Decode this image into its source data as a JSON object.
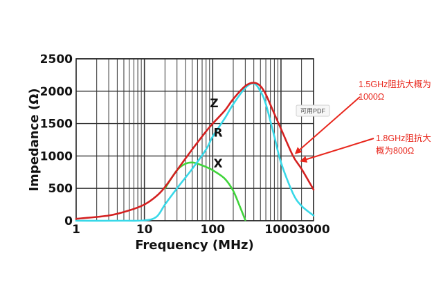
{
  "chart_data": {
    "type": "line",
    "xlabel": "Frequency (MHz)",
    "ylabel": "Impedance (Ω)",
    "xscale": "log",
    "xlim": [
      1,
      3000
    ],
    "ylim": [
      0,
      2500
    ],
    "x_ticks": [
      1,
      10,
      100,
      1000,
      3000
    ],
    "x_tick_labels": [
      "1",
      "10",
      "100",
      "1000",
      "3000"
    ],
    "y_ticks": [
      0,
      500,
      1000,
      1500,
      2000,
      2500
    ],
    "y_tick_labels": [
      "0",
      "500",
      "1000",
      "1500",
      "2000",
      "2500"
    ],
    "grid": true,
    "series": [
      {
        "name": "Z",
        "color": "#d42020",
        "x": [
          1,
          3,
          6,
          10,
          15,
          20,
          30,
          50,
          80,
          100,
          150,
          200,
          300,
          400,
          500,
          600,
          800,
          1000,
          1500,
          2000,
          3000
        ],
        "y": [
          30,
          80,
          160,
          250,
          380,
          520,
          780,
          1100,
          1380,
          1500,
          1700,
          1880,
          2080,
          2130,
          2080,
          1950,
          1650,
          1420,
          1000,
          800,
          480
        ]
      },
      {
        "name": "R",
        "color": "#38d8e8",
        "x": [
          1,
          5,
          10,
          15,
          20,
          30,
          50,
          80,
          100,
          150,
          200,
          300,
          400,
          500,
          600,
          800,
          1000,
          1500,
          2000,
          3000
        ],
        "y": [
          0,
          0,
          5,
          60,
          250,
          500,
          800,
          1100,
          1300,
          1580,
          1800,
          2050,
          2120,
          2000,
          1800,
          1300,
          900,
          420,
          230,
          80
        ]
      },
      {
        "name": "X",
        "color": "#3fd43a",
        "x": [
          20,
          30,
          40,
          50,
          60,
          80,
          100,
          150,
          200,
          250,
          300
        ],
        "y": [
          500,
          780,
          880,
          900,
          880,
          830,
          780,
          650,
          460,
          220,
          10
        ]
      }
    ],
    "series_label_positions": [
      {
        "name": "Z",
        "x": 105,
        "y": 1750
      },
      {
        "name": "R",
        "x": 120,
        "y": 1300
      },
      {
        "name": "X",
        "x": 120,
        "y": 820
      }
    ]
  },
  "annotations": [
    {
      "lines": [
        "1.5GHz阻抗大概为",
        "1000Ω"
      ],
      "target_x": 1500,
      "target_y": 1000
    },
    {
      "lines": [
        "1.8GHz阻抗大",
        "概为800Ω"
      ],
      "target_x": 1800,
      "target_y": 880
    }
  ],
  "badge": {
    "label": "可用PDF"
  }
}
